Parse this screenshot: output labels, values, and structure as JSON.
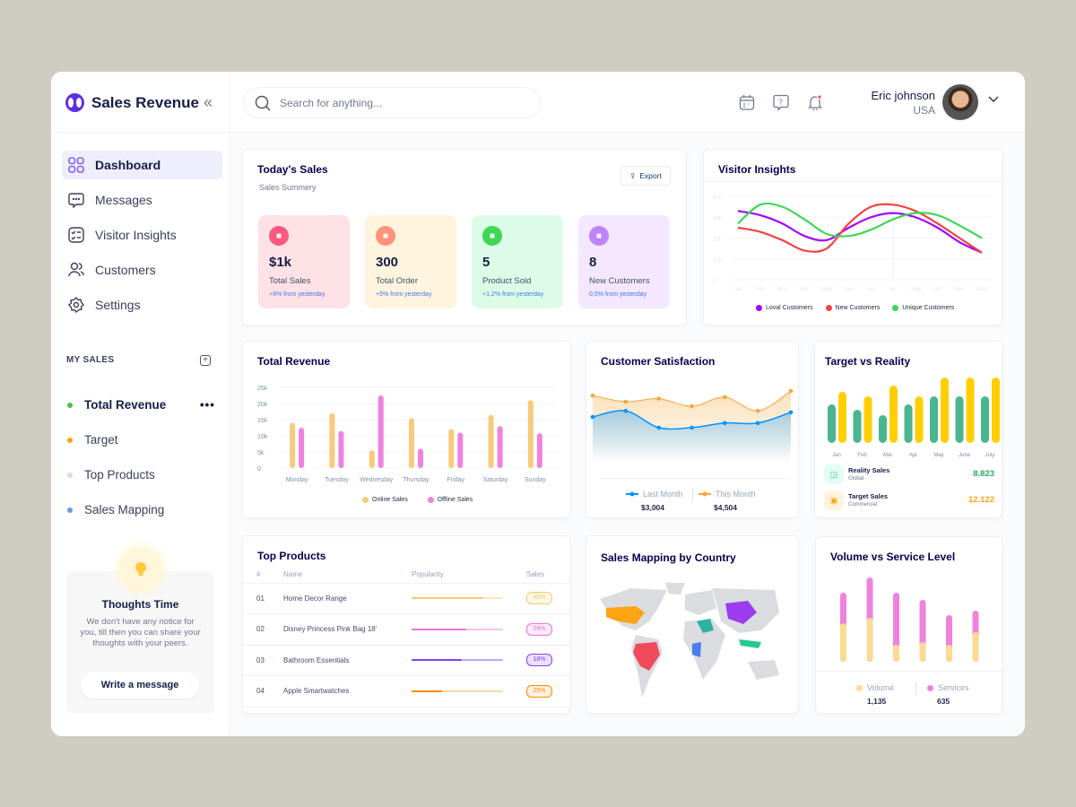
{
  "brand": {
    "name": "Sales Revenue"
  },
  "sidebar": {
    "items": [
      {
        "label": "Dashboard",
        "icon": "grid-icon",
        "active": true
      },
      {
        "label": "Messages",
        "icon": "chat-icon"
      },
      {
        "label": "Visitor Insights",
        "icon": "checklist-icon"
      },
      {
        "label": "Customers",
        "icon": "users-icon"
      },
      {
        "label": "Settings",
        "icon": "gear-icon"
      }
    ],
    "my_sales_title": "MY SALES",
    "my_sales": [
      {
        "label": "Total Revenue",
        "color": "#4cbd52",
        "active": true,
        "more": "•••"
      },
      {
        "label": "Target",
        "color": "#ff9f0a"
      },
      {
        "label": "Top Products",
        "color": "#e5d3f5"
      },
      {
        "label": "Sales Mapping",
        "color": "#6e9ad6"
      }
    ],
    "thoughts": {
      "title": "Thoughts Time",
      "text": "We don't have any notice for you, till then you can share your thoughts with your peers.",
      "button": "Write a message"
    }
  },
  "header": {
    "search_placeholder": "Search for anything...",
    "user": {
      "name": "Eric johnson",
      "location": "USA"
    }
  },
  "todays_sales": {
    "title": "Today's Sales",
    "subtitle": "Sales Summery",
    "export": "Export",
    "stats": [
      {
        "value": "$1k",
        "label": "Total Sales",
        "change": "+8% from yesterday",
        "bg": "#ffe2e6",
        "icon_bg": "#fa5a7d",
        "icon": "chart-icon"
      },
      {
        "value": "300",
        "label": "Total Order",
        "change": "+5% from yesterday",
        "bg": "#fff4de",
        "icon_bg": "#ff947a",
        "icon": "document-icon"
      },
      {
        "value": "5",
        "label": "Product Sold",
        "change": "+1,2% from yesterday",
        "bg": "#dcfce7",
        "icon_bg": "#3cd856",
        "icon": "tag-icon"
      },
      {
        "value": "8",
        "label": "New Customers",
        "change": "0,5% from yesterday",
        "bg": "#f3e8ff",
        "icon_bg": "#bf83ff",
        "icon": "user-plus-icon"
      }
    ]
  },
  "chart_data": [
    {
      "id": "visitor",
      "type": "line",
      "title": "Visitor Insights",
      "ylim": [
        0,
        400
      ],
      "yticks": [
        "0",
        "100",
        "200",
        "300",
        "400"
      ],
      "categories": [
        "Jan",
        "Feb",
        "Mar",
        "Apr",
        "May",
        "Jun",
        "Jun",
        "Jul",
        "Sept",
        "Oct",
        "Nov",
        "Dec"
      ],
      "legend_position": "bottom",
      "series": [
        {
          "name": "Loval Customers",
          "color": "#a700ff",
          "values": [
            330,
            310,
            270,
            210,
            190,
            250,
            300,
            320,
            300,
            250,
            180,
            130
          ]
        },
        {
          "name": "New Customers",
          "color": "#ef4444",
          "values": [
            250,
            230,
            190,
            140,
            150,
            270,
            350,
            360,
            330,
            270,
            200,
            130
          ]
        },
        {
          "name": "Unique Customers",
          "color": "#3cd856",
          "values": [
            270,
            360,
            350,
            290,
            220,
            210,
            240,
            290,
            320,
            310,
            260,
            200
          ]
        }
      ]
    },
    {
      "id": "revenue",
      "type": "bar",
      "title": "Total Revenue",
      "ylim": [
        0,
        25000
      ],
      "yticks": [
        "0",
        "5k",
        "10k",
        "15k",
        "20k",
        "25k"
      ],
      "categories": [
        "Monday",
        "Tuesday",
        "Wednesday",
        "Thursday",
        "Friday",
        "Saturday",
        "Sunday"
      ],
      "legend_position": "bottom",
      "grid": true,
      "series": [
        {
          "name": "Online Sales",
          "color": "#f6cb7a",
          "values": [
            14000,
            17000,
            5500,
            15500,
            12000,
            16500,
            21000
          ]
        },
        {
          "name": "Offline Sales",
          "color": "#ef82dd",
          "values": [
            12500,
            11500,
            22500,
            6000,
            11000,
            13000,
            10800
          ]
        }
      ]
    },
    {
      "id": "satisfaction",
      "type": "area",
      "title": "Customer Satisfaction",
      "series": [
        {
          "name": "Last Month",
          "color": "#0095ff",
          "total": "$3,004",
          "values": [
            3.0,
            3.4,
            2.3,
            2.3,
            2.6,
            2.6,
            3.3
          ]
        },
        {
          "name": "This Month",
          "color": "#f4a63a",
          "total": "$4,504",
          "values": [
            4.4,
            4.0,
            4.2,
            3.7,
            4.3,
            3.4,
            4.7
          ]
        }
      ]
    },
    {
      "id": "target",
      "type": "bar",
      "title": "Target vs Reality",
      "categories": [
        "Jan",
        "Feb",
        "Mar",
        "Apr",
        "May",
        "June",
        "July"
      ],
      "series": [
        {
          "name": "Reality Sales",
          "sub": "Global",
          "total": "8.823",
          "color": "#4ab58e",
          "values": [
            43,
            37,
            31,
            43,
            52,
            52,
            52
          ]
        },
        {
          "name": "Target Sales",
          "sub": "Commercial",
          "total": "12.122",
          "color": "#ffcf00",
          "values": [
            57,
            52,
            64,
            52,
            73,
            73,
            73
          ]
        }
      ]
    },
    {
      "id": "volume",
      "type": "stacked-bar",
      "title": "Volume vs Service Level",
      "series": [
        {
          "name": "Volume",
          "total": "1,135",
          "color": "#fbdb94",
          "values": [
            43,
            49,
            19,
            22,
            19,
            33
          ]
        },
        {
          "name": "Services",
          "total": "635",
          "color": "#ef82dd",
          "values": [
            34,
            45,
            58,
            47,
            33,
            24
          ]
        }
      ]
    }
  ],
  "top_products": {
    "title": "Top Products",
    "columns": [
      "#",
      "Name",
      "Popularity",
      "Sales"
    ],
    "rows": [
      {
        "num": "01",
        "name": "Home Decor Range",
        "popularity": 0.78,
        "sales": "45%",
        "color": "#f6cb6a",
        "light": "#fde8b8"
      },
      {
        "num": "02",
        "name": "Disney Princess Pink Bag 18'",
        "popularity": 0.6,
        "sales": "29%",
        "color": "#ef70dd",
        "light": "#f6c4ef"
      },
      {
        "num": "03",
        "name": "Bathroom Essentials",
        "popularity": 0.55,
        "sales": "18%",
        "color": "#8b3cf7",
        "light": "#c4a5fb"
      },
      {
        "num": "04",
        "name": "Apple Smartwatches",
        "popularity": 0.33,
        "sales": "25%",
        "color": "#ff8a00",
        "light": "#ffd6a3"
      }
    ]
  },
  "sales_mapping": {
    "title": "Sales Mapping by Country"
  }
}
